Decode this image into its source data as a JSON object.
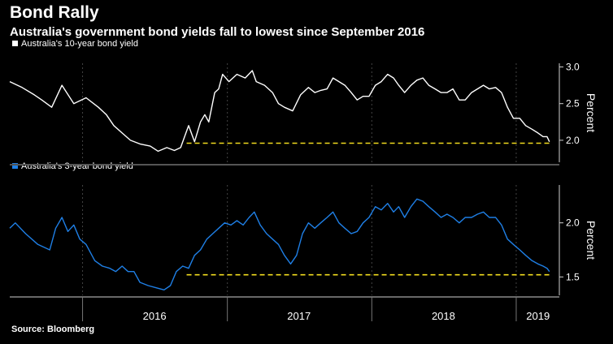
{
  "header": {
    "title": "Bond Rally",
    "subtitle": "Australia's government bond yields fall to lowest since September 2016"
  },
  "footer": {
    "source": "Source: Bloomberg"
  },
  "colors": {
    "background": "#000000",
    "ten_year": "#ffffff",
    "three_year": "#1f7fe5",
    "reference_line": "#f2dc1e",
    "axis": "#cfcfcf",
    "grid": "#444444"
  },
  "chart_data": [
    {
      "type": "line",
      "panel": "top",
      "series": [
        {
          "name": "Australia's 10-year bond yield",
          "color": "#ffffff",
          "points": [
            [
              "2015-07-01",
              2.8
            ],
            [
              "2015-08-01",
              2.72
            ],
            [
              "2015-09-01",
              2.62
            ],
            [
              "2015-09-20",
              2.55
            ],
            [
              "2015-10-15",
              2.45
            ],
            [
              "2015-11-10",
              2.75
            ],
            [
              "2015-12-10",
              2.5
            ],
            [
              "2016-01-10",
              2.58
            ],
            [
              "2016-02-10",
              2.45
            ],
            [
              "2016-03-01",
              2.35
            ],
            [
              "2016-03-20",
              2.2
            ],
            [
              "2016-04-10",
              2.1
            ],
            [
              "2016-05-01",
              2.0
            ],
            [
              "2016-05-25",
              1.95
            ],
            [
              "2016-06-20",
              1.92
            ],
            [
              "2016-07-10",
              1.85
            ],
            [
              "2016-08-01",
              1.9
            ],
            [
              "2016-08-20",
              1.86
            ],
            [
              "2016-09-05",
              1.9
            ],
            [
              "2016-09-25",
              2.2
            ],
            [
              "2016-10-10",
              1.98
            ],
            [
              "2016-10-25",
              2.25
            ],
            [
              "2016-11-05",
              2.35
            ],
            [
              "2016-11-15",
              2.25
            ],
            [
              "2016-11-30",
              2.65
            ],
            [
              "2016-12-10",
              2.7
            ],
            [
              "2016-12-20",
              2.9
            ],
            [
              "2017-01-05",
              2.8
            ],
            [
              "2017-01-25",
              2.9
            ],
            [
              "2017-02-15",
              2.85
            ],
            [
              "2017-03-05",
              2.95
            ],
            [
              "2017-03-15",
              2.8
            ],
            [
              "2017-04-05",
              2.75
            ],
            [
              "2017-04-25",
              2.65
            ],
            [
              "2017-05-10",
              2.5
            ],
            [
              "2017-05-25",
              2.45
            ],
            [
              "2017-06-15",
              2.4
            ],
            [
              "2017-07-05",
              2.62
            ],
            [
              "2017-07-25",
              2.72
            ],
            [
              "2017-08-10",
              2.65
            ],
            [
              "2017-08-25",
              2.68
            ],
            [
              "2017-09-10",
              2.7
            ],
            [
              "2017-09-25",
              2.85
            ],
            [
              "2017-10-10",
              2.8
            ],
            [
              "2017-10-25",
              2.75
            ],
            [
              "2017-11-10",
              2.65
            ],
            [
              "2017-11-25",
              2.55
            ],
            [
              "2017-12-10",
              2.6
            ],
            [
              "2017-12-25",
              2.6
            ],
            [
              "2018-01-10",
              2.75
            ],
            [
              "2018-01-25",
              2.8
            ],
            [
              "2018-02-10",
              2.9
            ],
            [
              "2018-02-25",
              2.85
            ],
            [
              "2018-03-10",
              2.75
            ],
            [
              "2018-03-25",
              2.65
            ],
            [
              "2018-04-10",
              2.75
            ],
            [
              "2018-04-25",
              2.82
            ],
            [
              "2018-05-10",
              2.85
            ],
            [
              "2018-05-25",
              2.75
            ],
            [
              "2018-06-10",
              2.7
            ],
            [
              "2018-06-25",
              2.65
            ],
            [
              "2018-07-10",
              2.65
            ],
            [
              "2018-07-25",
              2.7
            ],
            [
              "2018-08-10",
              2.55
            ],
            [
              "2018-08-25",
              2.55
            ],
            [
              "2018-09-10",
              2.65
            ],
            [
              "2018-09-25",
              2.7
            ],
            [
              "2018-10-10",
              2.75
            ],
            [
              "2018-10-25",
              2.7
            ],
            [
              "2018-11-10",
              2.72
            ],
            [
              "2018-11-25",
              2.65
            ],
            [
              "2018-12-10",
              2.45
            ],
            [
              "2018-12-25",
              2.3
            ],
            [
              "2019-01-10",
              2.3
            ],
            [
              "2019-01-25",
              2.2
            ],
            [
              "2019-02-10",
              2.15
            ],
            [
              "2019-02-25",
              2.1
            ],
            [
              "2019-03-10",
              2.05
            ],
            [
              "2019-03-20",
              2.05
            ],
            [
              "2019-03-26",
              1.98
            ]
          ]
        }
      ],
      "y_ticks": [
        2.0,
        2.5,
        3.0
      ],
      "ylim": [
        1.7,
        3.05
      ],
      "ylabel": "Percent",
      "reference_line": {
        "y": 1.96,
        "x_start": "2016-09-20",
        "x_end": "2019-03-31",
        "style": "dashed"
      }
    },
    {
      "type": "line",
      "panel": "bottom",
      "series": [
        {
          "name": "Australia's 3-year bond yield",
          "color": "#1f7fe5",
          "points": [
            [
              "2015-07-01",
              1.95
            ],
            [
              "2015-07-15",
              2.0
            ],
            [
              "2015-08-10",
              1.9
            ],
            [
              "2015-09-10",
              1.8
            ],
            [
              "2015-10-10",
              1.75
            ],
            [
              "2015-10-25",
              1.95
            ],
            [
              "2015-11-10",
              2.05
            ],
            [
              "2015-11-25",
              1.92
            ],
            [
              "2015-12-10",
              1.98
            ],
            [
              "2015-12-25",
              1.85
            ],
            [
              "2016-01-10",
              1.8
            ],
            [
              "2016-02-01",
              1.65
            ],
            [
              "2016-02-20",
              1.6
            ],
            [
              "2016-03-10",
              1.58
            ],
            [
              "2016-03-25",
              1.55
            ],
            [
              "2016-04-10",
              1.6
            ],
            [
              "2016-04-25",
              1.55
            ],
            [
              "2016-05-10",
              1.55
            ],
            [
              "2016-05-25",
              1.45
            ],
            [
              "2016-06-15",
              1.42
            ],
            [
              "2016-07-05",
              1.4
            ],
            [
              "2016-07-25",
              1.38
            ],
            [
              "2016-08-10",
              1.42
            ],
            [
              "2016-08-25",
              1.55
            ],
            [
              "2016-09-10",
              1.6
            ],
            [
              "2016-09-25",
              1.58
            ],
            [
              "2016-10-10",
              1.7
            ],
            [
              "2016-10-25",
              1.75
            ],
            [
              "2016-11-10",
              1.85
            ],
            [
              "2016-11-25",
              1.9
            ],
            [
              "2016-12-10",
              1.95
            ],
            [
              "2016-12-25",
              2.0
            ],
            [
              "2017-01-10",
              1.98
            ],
            [
              "2017-01-25",
              2.02
            ],
            [
              "2017-02-10",
              1.98
            ],
            [
              "2017-02-25",
              2.05
            ],
            [
              "2017-03-10",
              2.1
            ],
            [
              "2017-03-25",
              1.98
            ],
            [
              "2017-04-10",
              1.9
            ],
            [
              "2017-04-25",
              1.85
            ],
            [
              "2017-05-10",
              1.8
            ],
            [
              "2017-05-25",
              1.7
            ],
            [
              "2017-06-10",
              1.62
            ],
            [
              "2017-06-25",
              1.7
            ],
            [
              "2017-07-10",
              1.9
            ],
            [
              "2017-07-25",
              2.0
            ],
            [
              "2017-08-10",
              1.95
            ],
            [
              "2017-08-25",
              2.0
            ],
            [
              "2017-09-10",
              2.05
            ],
            [
              "2017-09-25",
              2.1
            ],
            [
              "2017-10-10",
              2.0
            ],
            [
              "2017-10-25",
              1.95
            ],
            [
              "2017-11-10",
              1.9
            ],
            [
              "2017-11-25",
              1.92
            ],
            [
              "2017-12-10",
              2.0
            ],
            [
              "2017-12-25",
              2.05
            ],
            [
              "2018-01-10",
              2.15
            ],
            [
              "2018-01-25",
              2.12
            ],
            [
              "2018-02-10",
              2.18
            ],
            [
              "2018-02-25",
              2.1
            ],
            [
              "2018-03-10",
              2.15
            ],
            [
              "2018-03-25",
              2.05
            ],
            [
              "2018-04-10",
              2.15
            ],
            [
              "2018-04-25",
              2.22
            ],
            [
              "2018-05-10",
              2.2
            ],
            [
              "2018-05-25",
              2.15
            ],
            [
              "2018-06-10",
              2.1
            ],
            [
              "2018-06-25",
              2.05
            ],
            [
              "2018-07-10",
              2.08
            ],
            [
              "2018-07-25",
              2.05
            ],
            [
              "2018-08-10",
              2.0
            ],
            [
              "2018-08-25",
              2.05
            ],
            [
              "2018-09-10",
              2.05
            ],
            [
              "2018-09-25",
              2.08
            ],
            [
              "2018-10-10",
              2.1
            ],
            [
              "2018-10-25",
              2.05
            ],
            [
              "2018-11-10",
              2.05
            ],
            [
              "2018-11-25",
              1.98
            ],
            [
              "2018-12-10",
              1.85
            ],
            [
              "2018-12-25",
              1.8
            ],
            [
              "2019-01-10",
              1.75
            ],
            [
              "2019-01-25",
              1.7
            ],
            [
              "2019-02-10",
              1.65
            ],
            [
              "2019-02-25",
              1.62
            ],
            [
              "2019-03-10",
              1.6
            ],
            [
              "2019-03-20",
              1.58
            ],
            [
              "2019-03-26",
              1.55
            ]
          ]
        }
      ],
      "y_ticks": [
        1.5,
        2.0
      ],
      "ylim": [
        1.33,
        2.35
      ],
      "ylabel": "Percent",
      "reference_line": {
        "y": 1.52,
        "x_start": "2016-09-20",
        "x_end": "2019-03-31",
        "style": "dashed"
      }
    }
  ],
  "x_axis": {
    "range": [
      "2015-07-01",
      "2019-04-20"
    ],
    "year_labels": [
      {
        "label": "2016",
        "center": "2016-07-01"
      },
      {
        "label": "2017",
        "center": "2017-07-01"
      },
      {
        "label": "2018",
        "center": "2018-07-01"
      },
      {
        "label": "2019",
        "center": "2019-02-25"
      }
    ],
    "year_boundaries": [
      "2016-01-01",
      "2017-01-01",
      "2018-01-01",
      "2019-01-01"
    ]
  }
}
